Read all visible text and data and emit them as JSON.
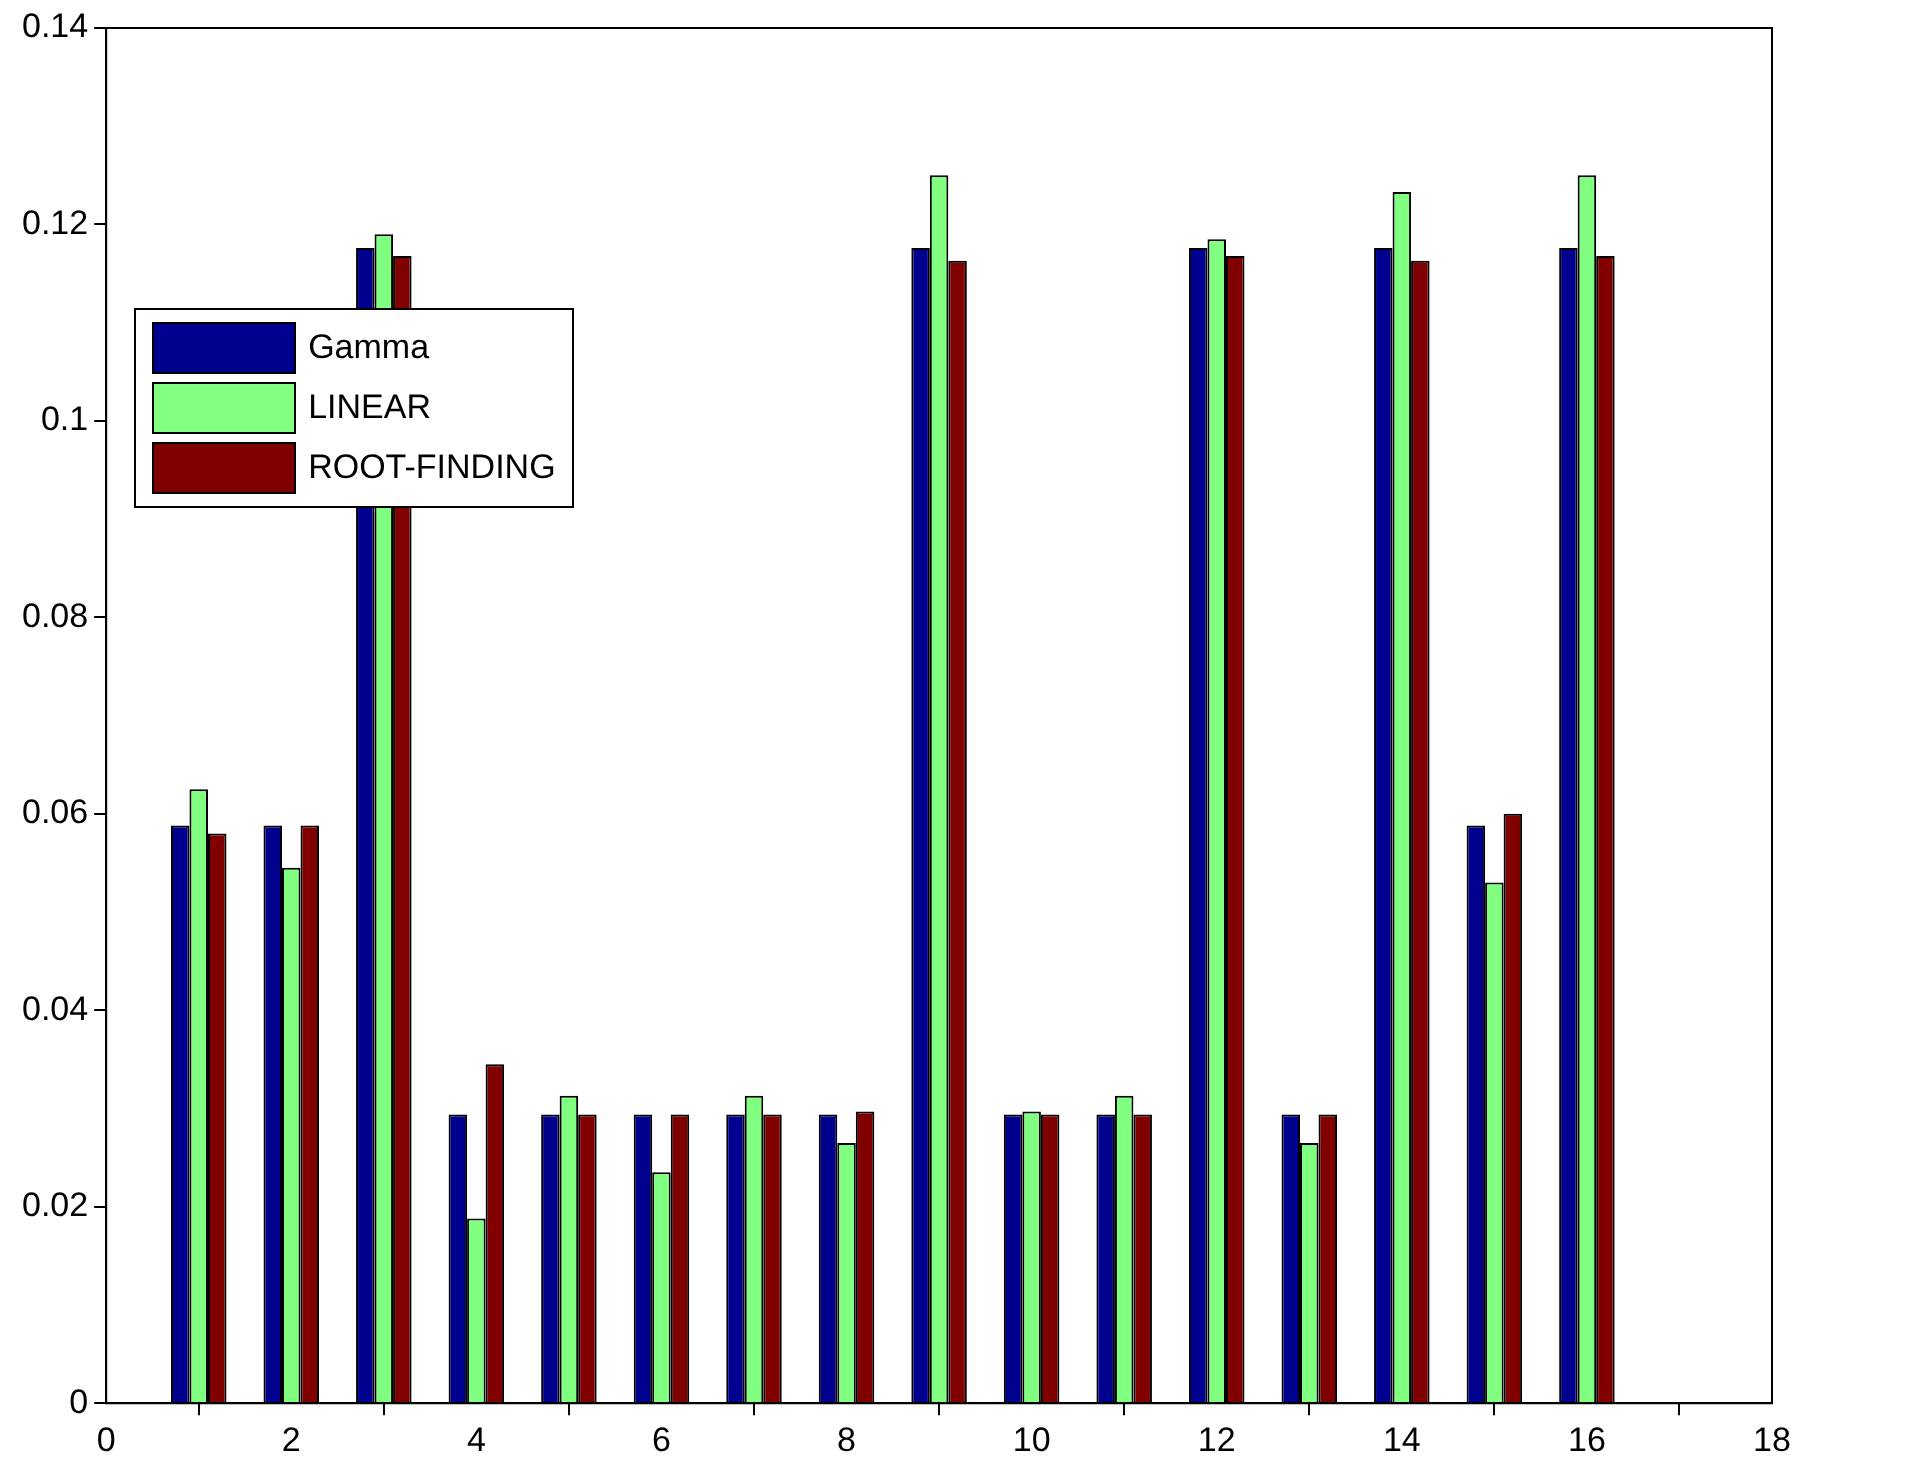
{
  "chart_data": {
    "type": "bar",
    "x": [
      1,
      2,
      3,
      4,
      5,
      6,
      7,
      8,
      9,
      10,
      11,
      12,
      13,
      14,
      15,
      16
    ],
    "series": [
      {
        "name": "Gamma",
        "color": "#00008f",
        "values": [
          0.0588,
          0.0588,
          0.1176,
          0.0294,
          0.0294,
          0.0294,
          0.0294,
          0.0294,
          0.1176,
          0.0294,
          0.0294,
          0.1176,
          0.0294,
          0.1176,
          0.0588,
          0.1176
        ]
      },
      {
        "name": "LINEAR",
        "color": "#80ff80",
        "values": [
          0.0625,
          0.0545,
          0.119,
          0.0188,
          0.0313,
          0.0235,
          0.0313,
          0.0265,
          0.125,
          0.0297,
          0.0313,
          0.1185,
          0.0265,
          0.1233,
          0.053,
          0.125
        ]
      },
      {
        "name": "ROOT-FINDING",
        "color": "#800000",
        "values": [
          0.058,
          0.0588,
          0.1168,
          0.0345,
          0.0294,
          0.0294,
          0.0294,
          0.0297,
          0.1163,
          0.0294,
          0.0294,
          0.1168,
          0.0294,
          0.1163,
          0.06,
          0.1168
        ]
      }
    ],
    "xlim": [
      0,
      18
    ],
    "xticks": [
      0,
      2,
      4,
      6,
      8,
      10,
      12,
      14,
      16,
      18
    ],
    "ylim": [
      0,
      0.14
    ],
    "yticks": [
      0,
      0.02,
      0.04,
      0.06,
      0.08,
      0.1,
      0.12,
      0.14
    ],
    "grid": false,
    "legend": "top left"
  }
}
